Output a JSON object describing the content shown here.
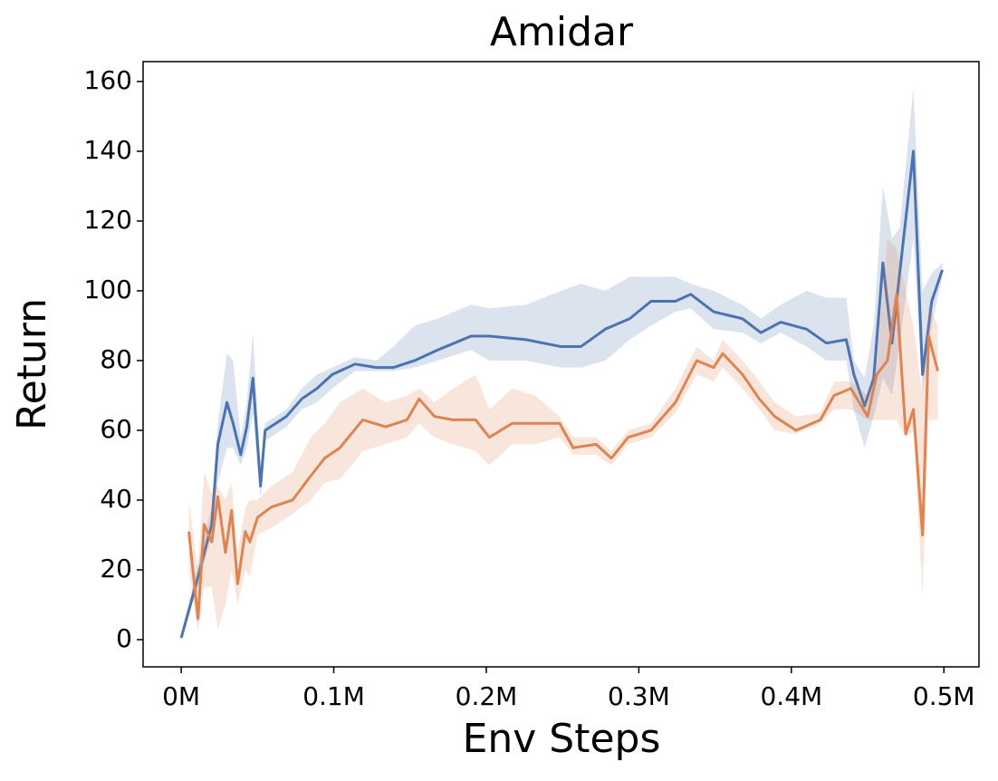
{
  "chart_data": {
    "type": "line",
    "title": "Amidar",
    "x_label": "Env Steps",
    "y_label": "Return",
    "xlim": [
      -0.025,
      0.523
    ],
    "ylim": [
      -7.8,
      165.7
    ],
    "xticks": [
      {
        "value": 0,
        "label": "0M"
      },
      {
        "value": 0.1,
        "label": "0.1M"
      },
      {
        "value": 0.2,
        "label": "0.2M"
      },
      {
        "value": 0.3,
        "label": "0.3M"
      },
      {
        "value": 0.4,
        "label": "0.4M"
      },
      {
        "value": 0.5,
        "label": "0.5M"
      }
    ],
    "yticks": [
      0,
      20,
      40,
      60,
      80,
      100,
      120,
      140,
      160
    ],
    "grid": false,
    "band_opacity": 0.2,
    "series": [
      {
        "color": "#4c72b0",
        "x": [
          0,
          0.011,
          0.02,
          0.024,
          0.03,
          0.034,
          0.039,
          0.043,
          0.047,
          0.052,
          0.055,
          0.069,
          0.079,
          0.089,
          0.099,
          0.114,
          0.128,
          0.139,
          0.153,
          0.168,
          0.19,
          0.202,
          0.226,
          0.249,
          0.262,
          0.278,
          0.294,
          0.308,
          0.324,
          0.334,
          0.349,
          0.368,
          0.38,
          0.393,
          0.41,
          0.423,
          0.436,
          0.441,
          0.448,
          0.454,
          0.46,
          0.466,
          0.471,
          0.48,
          0.486,
          0.492,
          0.499
        ],
        "values": [
          0.5,
          18,
          33,
          56,
          68,
          62,
          53,
          61,
          75,
          44,
          60,
          64,
          69,
          72,
          76,
          79,
          78,
          78,
          80,
          83,
          87,
          87,
          86,
          84,
          84,
          89,
          92,
          97,
          97,
          99,
          94,
          92,
          88,
          91,
          89,
          85,
          86,
          76,
          67,
          75,
          108,
          85,
          105,
          140,
          76,
          97,
          106
        ],
        "lower": [
          0.5,
          15,
          30,
          45,
          55,
          55,
          50,
          55,
          65,
          40,
          57,
          61,
          66,
          68,
          72,
          77,
          77,
          77,
          78,
          80,
          83,
          80,
          80,
          78,
          78,
          80,
          86,
          90,
          94,
          95,
          89,
          88,
          85,
          88,
          84,
          80,
          80,
          66,
          55,
          64,
          75,
          70,
          85,
          115,
          70,
          90,
          104
        ],
        "upper": [
          0.5,
          22,
          38,
          62,
          82,
          80,
          58,
          68,
          88,
          50,
          62,
          66,
          72,
          76,
          78,
          81,
          80,
          84,
          90,
          92,
          96,
          95,
          96,
          100,
          102,
          100,
          104,
          104,
          104,
          102,
          100,
          96,
          92,
          96,
          100,
          98,
          98,
          80,
          75,
          90,
          130,
          115,
          118,
          158,
          100,
          105,
          108
        ]
      },
      {
        "color": "#dd8452",
        "x": [
          0.005,
          0.011,
          0.015,
          0.02,
          0.024,
          0.029,
          0.033,
          0.037,
          0.042,
          0.045,
          0.05,
          0.059,
          0.073,
          0.085,
          0.094,
          0.104,
          0.119,
          0.134,
          0.148,
          0.156,
          0.166,
          0.178,
          0.193,
          0.202,
          0.217,
          0.232,
          0.248,
          0.257,
          0.272,
          0.282,
          0.293,
          0.308,
          0.324,
          0.338,
          0.349,
          0.355,
          0.368,
          0.379,
          0.389,
          0.403,
          0.419,
          0.428,
          0.439,
          0.45,
          0.456,
          0.463,
          0.469,
          0.475,
          0.48,
          0.486,
          0.49,
          0.496
        ],
        "values": [
          31,
          6,
          33,
          28,
          41,
          25,
          37,
          16,
          31,
          28,
          35,
          38,
          40,
          47,
          52,
          55,
          63,
          61,
          63,
          69,
          64,
          63,
          63,
          58,
          62,
          62,
          62,
          55,
          56,
          52,
          58,
          60,
          68,
          80,
          78,
          82,
          76,
          69,
          64,
          60,
          63,
          70,
          72,
          64,
          76,
          80,
          99,
          59,
          66,
          30,
          87,
          77
        ],
        "lower": [
          20,
          2,
          15,
          15,
          3,
          10,
          20,
          10,
          20,
          18,
          30,
          32,
          36,
          40,
          45,
          46,
          54,
          56,
          58,
          62,
          58,
          56,
          54,
          50,
          56,
          56,
          58,
          53,
          53,
          50,
          56,
          58,
          65,
          76,
          74,
          78,
          72,
          66,
          60,
          59,
          62,
          66,
          66,
          63,
          63,
          63,
          63,
          58,
          60,
          13,
          63,
          63
        ],
        "upper": [
          40,
          20,
          48,
          42,
          44,
          40,
          45,
          25,
          38,
          40,
          40,
          44,
          48,
          58,
          62,
          68,
          72,
          68,
          70,
          72,
          68,
          72,
          76,
          66,
          72,
          70,
          64,
          58,
          58,
          54,
          60,
          62,
          72,
          84,
          80,
          86,
          80,
          74,
          68,
          64,
          65,
          74,
          74,
          70,
          80,
          115,
          112,
          100,
          90,
          70,
          96,
          90
        ]
      }
    ]
  }
}
